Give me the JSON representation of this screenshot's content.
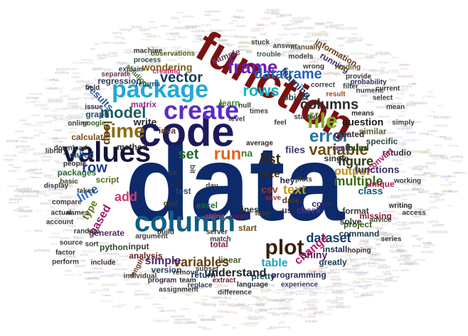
{
  "words": [
    {
      "text": "data",
      "color": "#0d2a6b"
    },
    {
      "text": "function",
      "color": "#7a1010"
    },
    {
      "text": "code",
      "color": "#1a1a5c"
    },
    {
      "text": "values",
      "color": "#141438"
    },
    {
      "text": "create",
      "color": "#5a2cc4"
    },
    {
      "text": "package",
      "color": "#1fa9d6"
    },
    {
      "text": "column",
      "color": "#0e5f86"
    },
    {
      "text": "plot",
      "color": "#3a1f05"
    },
    {
      "text": "time",
      "color": "#8a6d12"
    },
    {
      "text": "file",
      "color": "#7ab51c"
    },
    {
      "text": "run",
      "color": "#e0641e"
    },
    {
      "text": "error",
      "color": "#1b6fa8"
    },
    {
      "text": "frame",
      "color": "#6a1fb0"
    },
    {
      "text": "rows",
      "color": "#19b2c2"
    },
    {
      "text": "dataframe",
      "color": "#2460b8"
    },
    {
      "text": "columns",
      "color": "#2a2a2a"
    },
    {
      "text": "set",
      "color": "#1f6b2c"
    },
    {
      "text": "list",
      "color": "#3b2a10"
    },
    {
      "text": "row",
      "color": "#1e3a8a"
    },
    {
      "text": "variable",
      "color": "#6b4c10"
    },
    {
      "text": "model",
      "color": "#1a5e62"
    },
    {
      "text": "vector",
      "color": "#0c3b5a"
    },
    {
      "text": "figure",
      "color": "#2d3a0a"
    },
    {
      "text": "output",
      "color": "#c08a12"
    },
    {
      "text": "multiple",
      "color": "#3a6b10"
    },
    {
      "text": "dataset",
      "color": "#0f3f6b"
    },
    {
      "text": "change",
      "color": "#c01868"
    },
    {
      "text": "text",
      "color": "#c89a14"
    },
    {
      "text": "variables",
      "color": "#6a3a10"
    },
    {
      "text": "understand",
      "color": "#202020"
    },
    {
      "text": "simple",
      "color": "#4a2a70"
    },
    {
      "text": "table",
      "color": "#19a6c8"
    },
    {
      "text": "loop",
      "color": "#5a4210"
    },
    {
      "text": "based",
      "color": "#9c1a6a"
    },
    {
      "text": "line",
      "color": "#2f6fd0"
    },
    {
      "text": "type",
      "color": "#5c7a14"
    },
    {
      "text": "add",
      "color": "#d23a6a"
    },
    {
      "text": "learning",
      "color": "#1b3d6a"
    },
    {
      "text": "wondering",
      "color": "#7a5a10"
    },
    {
      "text": "results",
      "color": "#2a5aa0"
    },
    {
      "text": "question",
      "color": "#1a1a1a"
    },
    {
      "text": "files",
      "color": "#3a3a6a"
    },
    {
      "text": "read",
      "color": "#5a2a8a"
    },
    {
      "text": "found",
      "color": "#1a4a2a"
    },
    {
      "text": "functions",
      "color": "#303060"
    },
    {
      "text": "class",
      "color": "#0a5a7a"
    },
    {
      "text": "matrix",
      "color": "#a02a8a"
    },
    {
      "text": "running",
      "color": "#3a2a6a"
    },
    {
      "text": "information",
      "color": "#6a3a1a"
    },
    {
      "text": "regression",
      "color": "#2a3a5a"
    },
    {
      "text": "graph",
      "color": "#1a4a6a"
    },
    {
      "text": "write",
      "color": "#2a2a2a"
    },
    {
      "text": "script",
      "color": "#5a6a1a"
    },
    {
      "text": "calculate",
      "color": "#7a4a1a"
    },
    {
      "text": "called",
      "color": "#1a5a8a"
    },
    {
      "text": "packages",
      "color": "#2a6a3a"
    },
    {
      "text": "input",
      "color": "#3a3a3a"
    },
    {
      "text": "analysis",
      "color": "#6a1a1a"
    },
    {
      "text": "return",
      "color": "#1a3a6a"
    },
    {
      "text": "shiny",
      "color": "#5a1a5a"
    },
    {
      "text": "pretty",
      "color": "#1a4a5a"
    },
    {
      "text": "programming",
      "color": "#2a2a5a"
    },
    {
      "text": "command",
      "color": "#1a3a4a"
    },
    {
      "text": "project",
      "color": "#3a5a1a"
    },
    {
      "text": "test",
      "color": "#2a4a6a"
    },
    {
      "text": "excel",
      "color": "#1a6a3a"
    },
    {
      "text": "size",
      "color": "#3a2a1a"
    },
    {
      "text": "csv",
      "color": "#a03a1a"
    },
    {
      "text": "date",
      "color": "#4a3a1a"
    },
    {
      "text": "color",
      "color": "#2a2a6a"
    },
    {
      "text": "start",
      "color": "#6a4a1a"
    },
    {
      "text": "na",
      "color": "#3a7a2a"
    },
    {
      "text": "learn",
      "color": "#3a8a2a"
    },
    {
      "text": "idea",
      "color": "#5a3a1a"
    },
    {
      "text": "lines",
      "color": "#2a2a2a"
    },
    {
      "text": "version",
      "color": "#1a3a5a"
    },
    {
      "text": "install",
      "color": "#1a2a4a"
    },
    {
      "text": "rstudio",
      "color": "#2a2a2a"
    },
    {
      "text": "specific",
      "color": "#2a4a3a"
    },
    {
      "text": "similar",
      "color": "#5a5a2a"
    },
    {
      "text": "user",
      "color": "#2a2a4a"
    },
    {
      "text": "hey",
      "color": "#1a1a3a"
    },
    {
      "text": "check",
      "color": "#4a3a8a"
    },
    {
      "text": "format",
      "color": "#3a3a3a"
    },
    {
      "text": "solve",
      "color": "#2a3a2a"
    },
    {
      "text": "generate",
      "color": "#5a2a6a"
    },
    {
      "text": "python",
      "color": "#2a4a2a"
    },
    {
      "text": "method",
      "color": "#2a2a2a"
    },
    {
      "text": "total",
      "color": "#7a2a3a"
    },
    {
      "text": "single",
      "color": "#2a2a2a"
    },
    {
      "text": "created",
      "color": "#3a2a3a"
    },
    {
      "text": "object",
      "color": "#2a3a3a"
    },
    {
      "text": "convert",
      "color": "#b01a6a"
    },
    {
      "text": "unique",
      "color": "#a01a5a"
    },
    {
      "text": "missing",
      "color": "#8a1a3a"
    },
    {
      "text": "series",
      "color": "#2a3a4a"
    },
    {
      "text": "greatly",
      "color": "#1a3a5a"
    },
    {
      "text": "linear",
      "color": "#4a5a2a"
    },
    {
      "text": "sample",
      "color": "#6a3a6a"
    },
    {
      "text": "server",
      "color": "#3a2a2a"
    },
    {
      "text": "build",
      "color": "#2a2a2a"
    },
    {
      "text": "string",
      "color": "#c03a6a"
    },
    {
      "text": "count",
      "color": "#6a1a4a"
    },
    {
      "text": "call",
      "color": "#2a2a2a"
    },
    {
      "text": "process",
      "color": "#2a4a4a"
    },
    {
      "text": "explain",
      "color": "#3a3a5a"
    },
    {
      "text": "manually",
      "color": "#5a4a2a"
    },
    {
      "text": "trouble",
      "color": "#3a5a4a"
    },
    {
      "text": "issue",
      "color": "#2a2a4a"
    },
    {
      "text": "returns",
      "color": "#2a3a4a"
    },
    {
      "text": "solution",
      "color": "#3a6a2a"
    },
    {
      "text": "extract",
      "color": "#6a1a3a"
    },
    {
      "text": "language",
      "color": "#2a2a2a"
    },
    {
      "text": "experience",
      "color": "#3a3a6a"
    },
    {
      "text": "length",
      "color": "#6a3a1a"
    },
    {
      "text": "team",
      "color": "#2a2a2a"
    },
    {
      "text": "program",
      "color": "#3a2a4a"
    },
    {
      "text": "individual",
      "color": "#3a3a2a"
    },
    {
      "text": "include",
      "color": "#3a2a2a"
    },
    {
      "text": "replace",
      "color": "#2a3a5a"
    },
    {
      "text": "advice",
      "color": "#3a4a2a"
    },
    {
      "text": "writing",
      "color": "#2a2a2a"
    },
    {
      "text": "hoping",
      "color": "#3a2a2a"
    },
    {
      "text": "reading",
      "color": "#5a5a2a"
    },
    {
      "text": "separate",
      "color": "#6a3a5a"
    },
    {
      "text": "observations",
      "color": "#4a5a1a"
    },
    {
      "text": "machine",
      "color": "#3a3a3a"
    },
    {
      "text": "basic",
      "color": "#4a4a2a"
    },
    {
      "text": "average",
      "color": "#2a2a2a"
    },
    {
      "text": "started",
      "color": "#3a3a3a"
    },
    {
      "text": "probability",
      "color": "#2a2a5a"
    },
    {
      "text": "download",
      "color": "#3a3a3a"
    },
    {
      "text": "people",
      "color": "#2a2a2a"
    },
    {
      "text": "google",
      "color": "#3a5a2a"
    },
    {
      "text": "result",
      "color": "#a04a1a"
    },
    {
      "text": "means",
      "color": "#2a2a2a"
    },
    {
      "text": "assignment",
      "color": "#3a3a3a"
    },
    {
      "text": "difference",
      "color": "#3a3a3a"
    },
    {
      "text": "current",
      "color": "#3a3a3a"
    },
    {
      "text": "select",
      "color": "#3a3a3a"
    },
    {
      "text": "plots",
      "color": "#3a3a3a"
    },
    {
      "text": "lot",
      "color": "#3a3a3a"
    },
    {
      "text": "day",
      "color": "#3a3a3a"
    },
    {
      "text": "bit",
      "color": "#3a3a3a"
    },
    {
      "text": "feel",
      "color": "#3a3a3a"
    },
    {
      "text": "level",
      "color": "#3a3a3a"
    },
    {
      "text": "save",
      "color": "#a02a2a"
    },
    {
      "text": "load",
      "color": "#3a3a3a"
    },
    {
      "text": "creating",
      "color": "#c02a6a"
    },
    {
      "text": "filter",
      "color": "#3a3a3a"
    },
    {
      "text": "random",
      "color": "#3a3a3a"
    },
    {
      "text": "names",
      "color": "#3a3a3a"
    },
    {
      "text": "perform",
      "color": "#3a3a3a"
    },
    {
      "text": "source",
      "color": "#3a3a3a"
    },
    {
      "text": "argument",
      "color": "#3a3a3a"
    },
    {
      "text": "takes",
      "color": "#3a3a3a"
    },
    {
      "text": "provide",
      "color": "#3a3a3a"
    },
    {
      "text": "numeric",
      "color": "#3a3a3a"
    },
    {
      "text": "correct",
      "color": "#3a3a3a"
    },
    {
      "text": "models",
      "color": "#3a3a3a"
    },
    {
      "text": "wrong",
      "color": "#3a3a3a"
    },
    {
      "text": "answer",
      "color": "#3a3a3a"
    },
    {
      "text": "subset",
      "color": "#3a3a3a"
    },
    {
      "text": "remove",
      "color": "#3a3a3a"
    },
    {
      "text": "match",
      "color": "#3a3a3a"
    },
    {
      "text": "sort",
      "color": "#3a3a3a"
    },
    {
      "text": "field",
      "color": "#3a3a3a"
    },
    {
      "text": "goal",
      "color": "#3a3a3a"
    },
    {
      "text": "online",
      "color": "#3a3a3a"
    },
    {
      "text": "library",
      "color": "#3a3a3a"
    },
    {
      "text": "factor",
      "color": "#3a3a3a"
    },
    {
      "text": "actual",
      "color": "#3a3a3a"
    },
    {
      "text": "display",
      "color": "#3a3a3a"
    },
    {
      "text": "compare",
      "color": "#3a3a3a"
    },
    {
      "text": "account",
      "color": "#3a3a3a"
    },
    {
      "text": "stuck",
      "color": "#3a3a3a"
    },
    {
      "text": "null",
      "color": "#3a3a3a"
    },
    {
      "text": "times",
      "color": "#3a3a3a"
    },
    {
      "text": "mean",
      "color": "#3a3a3a"
    },
    {
      "text": "simply",
      "color": "#3a3a3a"
    },
    {
      "text": "working",
      "color": "#3a3a3a"
    },
    {
      "text": "access",
      "color": "#3a3a3a"
    }
  ]
}
